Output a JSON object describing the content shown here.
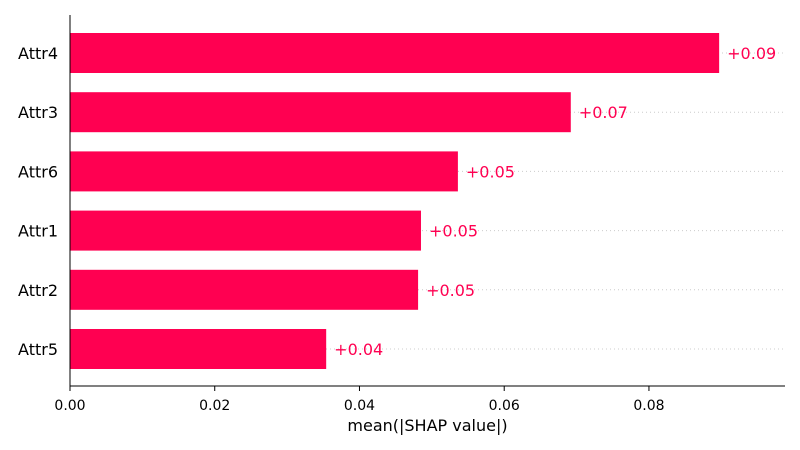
{
  "chart_data": {
    "type": "bar",
    "orientation": "horizontal",
    "categories": [
      "Attr4",
      "Attr3",
      "Attr6",
      "Attr1",
      "Attr2",
      "Attr5"
    ],
    "values": [
      0.0897,
      0.0692,
      0.0536,
      0.0485,
      0.0481,
      0.0354
    ],
    "value_labels": [
      "+0.09",
      "+0.07",
      "+0.05",
      "+0.05",
      "+0.05",
      "+0.04"
    ],
    "xlabel": "mean(|SHAP value|)",
    "ylabel": "",
    "xlim": [
      0.0,
      0.0988
    ],
    "xticks": [
      0.0,
      0.02,
      0.04,
      0.06,
      0.08
    ],
    "xtick_labels": [
      "0.00",
      "0.02",
      "0.04",
      "0.06",
      "0.08"
    ],
    "grid": false,
    "colors": {
      "bar": "#ff0051",
      "axis": "#000000",
      "guide": "#cccccc"
    }
  }
}
